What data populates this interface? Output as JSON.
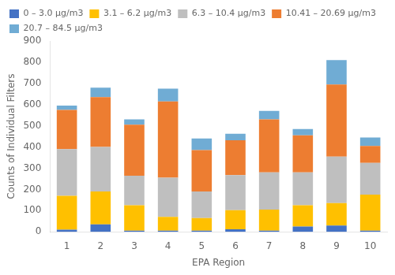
{
  "chart_data": {
    "type": "bar",
    "stacked": true,
    "xlabel": "EPA Region",
    "ylabel": "Counts of Individual Filters",
    "categories": [
      "1",
      "2",
      "3",
      "4",
      "5",
      "6",
      "7",
      "8",
      "9",
      "10"
    ],
    "series": [
      {
        "name": "0 – 3.0 μg/m3",
        "color": "#4472c4",
        "values": [
          10,
          35,
          5,
          5,
          5,
          12,
          5,
          25,
          30,
          5
        ]
      },
      {
        "name": "3.1 – 6.2 μg/m3",
        "color": "#ffc000",
        "values": [
          160,
          155,
          120,
          65,
          60,
          90,
          100,
          100,
          105,
          170
        ]
      },
      {
        "name": "6.3 – 10.4 μg/m3",
        "color": "#bfbfbf",
        "values": [
          220,
          210,
          140,
          185,
          125,
          165,
          175,
          155,
          220,
          150
        ]
      },
      {
        "name": "10.41 – 20.69 μg/m3",
        "color": "#ed7d31",
        "values": [
          185,
          235,
          240,
          360,
          195,
          165,
          250,
          175,
          340,
          80
        ]
      },
      {
        "name": "20.7 – 84.5 μg/m3",
        "color": "#70acd4",
        "values": [
          20,
          45,
          25,
          60,
          55,
          30,
          40,
          30,
          115,
          40
        ]
      }
    ],
    "ylim": [
      0,
      900
    ],
    "yticks": [
      0,
      100,
      200,
      300,
      400,
      500,
      600,
      700,
      800,
      900
    ],
    "grid": false,
    "legend": "upper left"
  }
}
